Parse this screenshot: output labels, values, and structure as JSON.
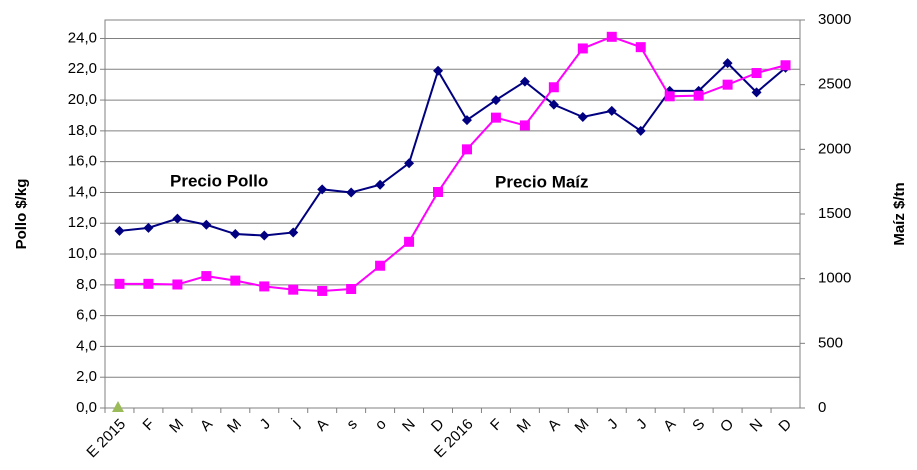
{
  "chart_data": {
    "type": "line",
    "ylabel": "Pollo $/kg",
    "y2label": "Maíz $/tn",
    "annotations": [
      "Precio Pollo",
      "Precio Maíz"
    ],
    "categories": [
      "E 2015",
      "F",
      "M",
      "A",
      "M",
      "J",
      "j",
      "A",
      "s",
      "o",
      "N",
      "D",
      "E 2016",
      "F",
      "M",
      "A",
      "M",
      "J",
      "J",
      "A",
      "S",
      "O",
      "N",
      "D"
    ],
    "series": [
      {
        "name": "Precio Pollo",
        "color": "#000080",
        "marker": "diamond",
        "axis": "y",
        "values": [
          11.5,
          11.7,
          12.3,
          11.9,
          11.3,
          11.2,
          11.4,
          14.2,
          14.0,
          14.5,
          15.9,
          21.9,
          18.7,
          20.0,
          21.2,
          19.7,
          18.9,
          19.3,
          18.0,
          20.6,
          20.6,
          22.4,
          20.5,
          22.1
        ]
      },
      {
        "name": "Precio Maíz",
        "color": "#ff00ff",
        "marker": "square",
        "axis": "y2",
        "values": [
          960,
          960,
          955,
          1020,
          985,
          940,
          915,
          905,
          920,
          1100,
          1285,
          1670,
          2000,
          2245,
          2185,
          2480,
          2780,
          2870,
          2790,
          2410,
          2415,
          2500,
          2590,
          2650
        ]
      }
    ],
    "ylim": [
      0,
      25.2
    ],
    "yticks": [
      {
        "value": 0,
        "label": "0,0"
      },
      {
        "value": 2,
        "label": "2,0"
      },
      {
        "value": 4,
        "label": "4,0"
      },
      {
        "value": 6,
        "label": "6,0"
      },
      {
        "value": 8,
        "label": "8,0"
      },
      {
        "value": 10,
        "label": "10,0"
      },
      {
        "value": 12,
        "label": "12,0"
      },
      {
        "value": 14,
        "label": "14,0"
      },
      {
        "value": 16,
        "label": "16,0"
      },
      {
        "value": 18,
        "label": "18,0"
      },
      {
        "value": 20,
        "label": "20,0"
      },
      {
        "value": 22,
        "label": "22,0"
      },
      {
        "value": 24,
        "label": "24,0"
      }
    ],
    "y2lim": [
      0,
      3000
    ],
    "y2ticks": [
      0,
      500,
      1000,
      1500,
      2000,
      2500,
      3000
    ],
    "grid": true
  }
}
